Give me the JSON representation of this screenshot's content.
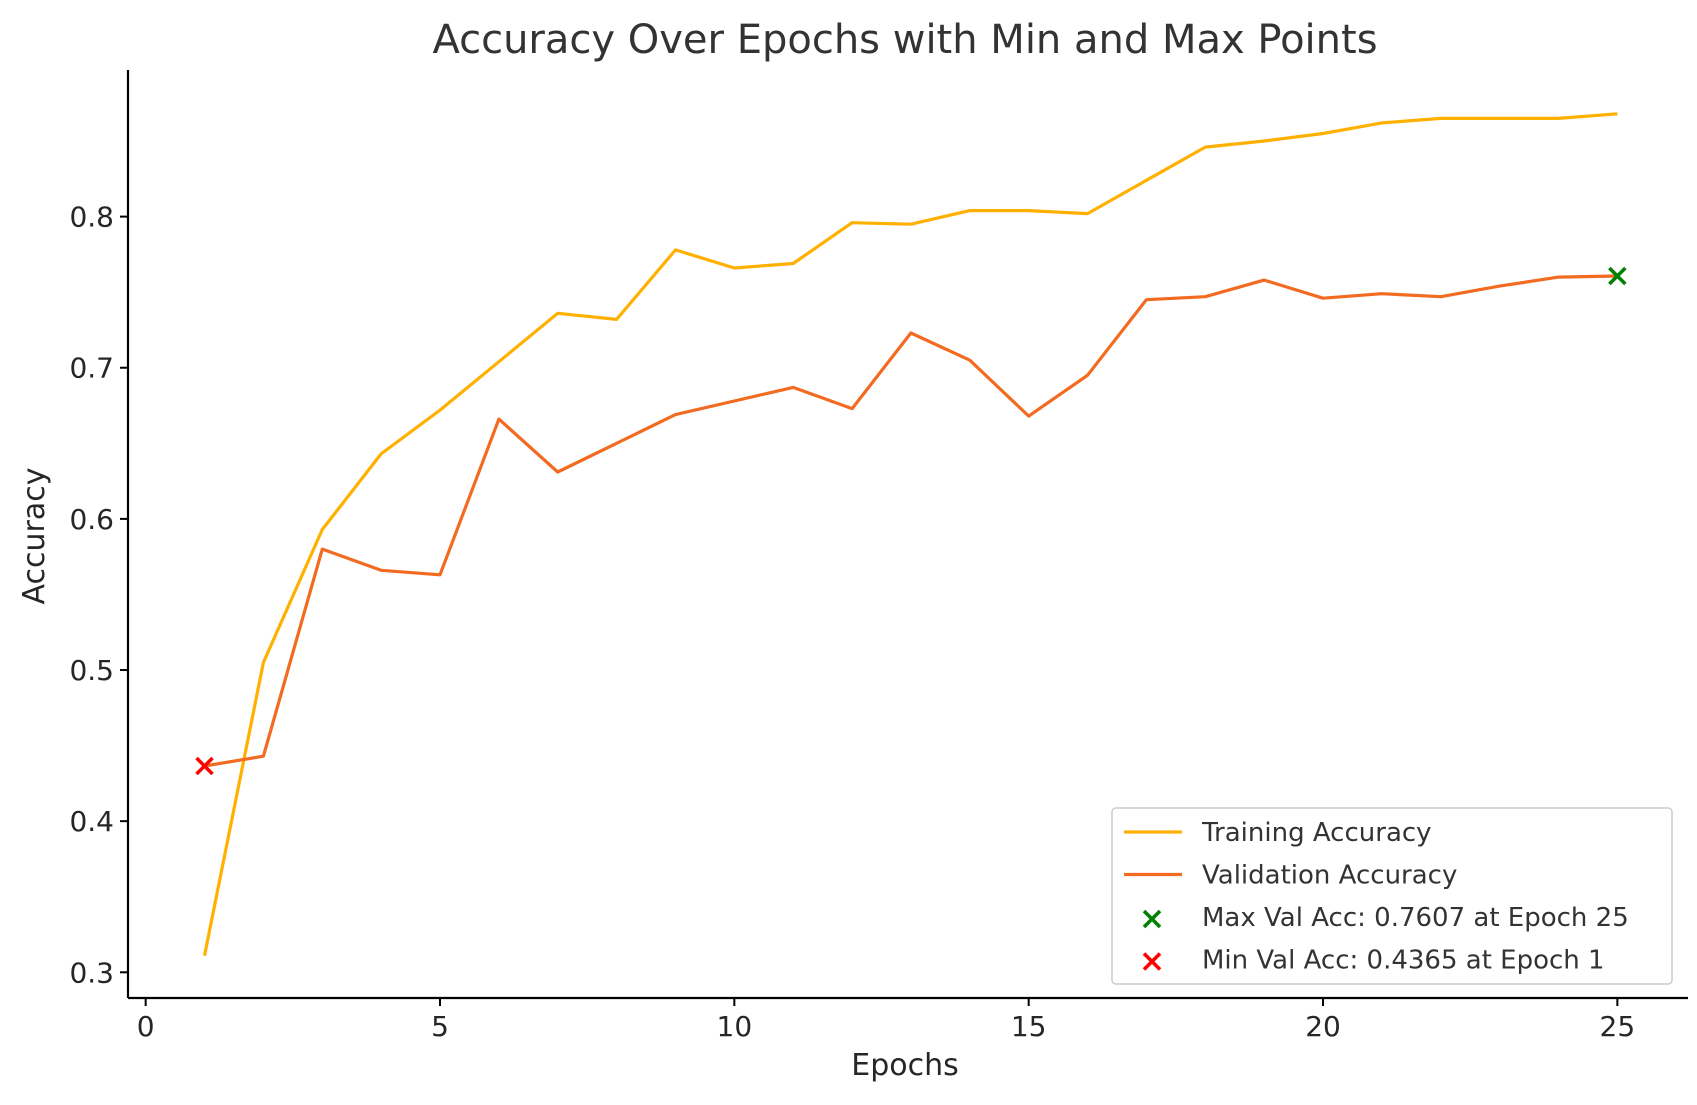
{
  "chart_data": {
    "type": "line",
    "title": "Accuracy Over Epochs with Min and Max Points",
    "xlabel": "Epochs",
    "ylabel": "Accuracy",
    "xlim": [
      -0.3,
      26.2
    ],
    "ylim": [
      0.283,
      0.897
    ],
    "x_ticks": [
      0,
      5,
      10,
      15,
      20,
      25
    ],
    "y_ticks": [
      0.3,
      0.4,
      0.5,
      0.6,
      0.7,
      0.8
    ],
    "grid": false,
    "legend_position": "lower right",
    "x": [
      1,
      2,
      3,
      4,
      5,
      6,
      7,
      8,
      9,
      10,
      11,
      12,
      13,
      14,
      15,
      16,
      17,
      18,
      19,
      20,
      21,
      22,
      23,
      24,
      25
    ],
    "series": [
      {
        "name": "Training Accuracy",
        "color": "#FFB000",
        "values": [
          0.311,
          0.505,
          0.593,
          0.643,
          0.672,
          0.704,
          0.736,
          0.732,
          0.778,
          0.766,
          0.769,
          0.796,
          0.795,
          0.804,
          0.804,
          0.802,
          0.824,
          0.846,
          0.85,
          0.855,
          0.862,
          0.865,
          0.865,
          0.865,
          0.868
        ]
      },
      {
        "name": "Validation Accuracy",
        "color": "#F26B21",
        "values": [
          0.4365,
          0.443,
          0.58,
          0.566,
          0.563,
          0.666,
          0.631,
          0.65,
          0.669,
          0.678,
          0.687,
          0.673,
          0.723,
          0.705,
          0.668,
          0.695,
          0.745,
          0.747,
          0.758,
          0.746,
          0.749,
          0.747,
          0.754,
          0.76,
          0.7607
        ]
      }
    ],
    "markers": [
      {
        "name": "Max Val Acc: 0.7607 at Epoch 25",
        "x": 25,
        "y": 0.7607,
        "color": "#008000",
        "symbol": "x"
      },
      {
        "name": "Min Val Acc: 0.4365 at Epoch 1",
        "x": 1,
        "y": 0.4365,
        "color": "#FF0000",
        "symbol": "x"
      }
    ]
  }
}
